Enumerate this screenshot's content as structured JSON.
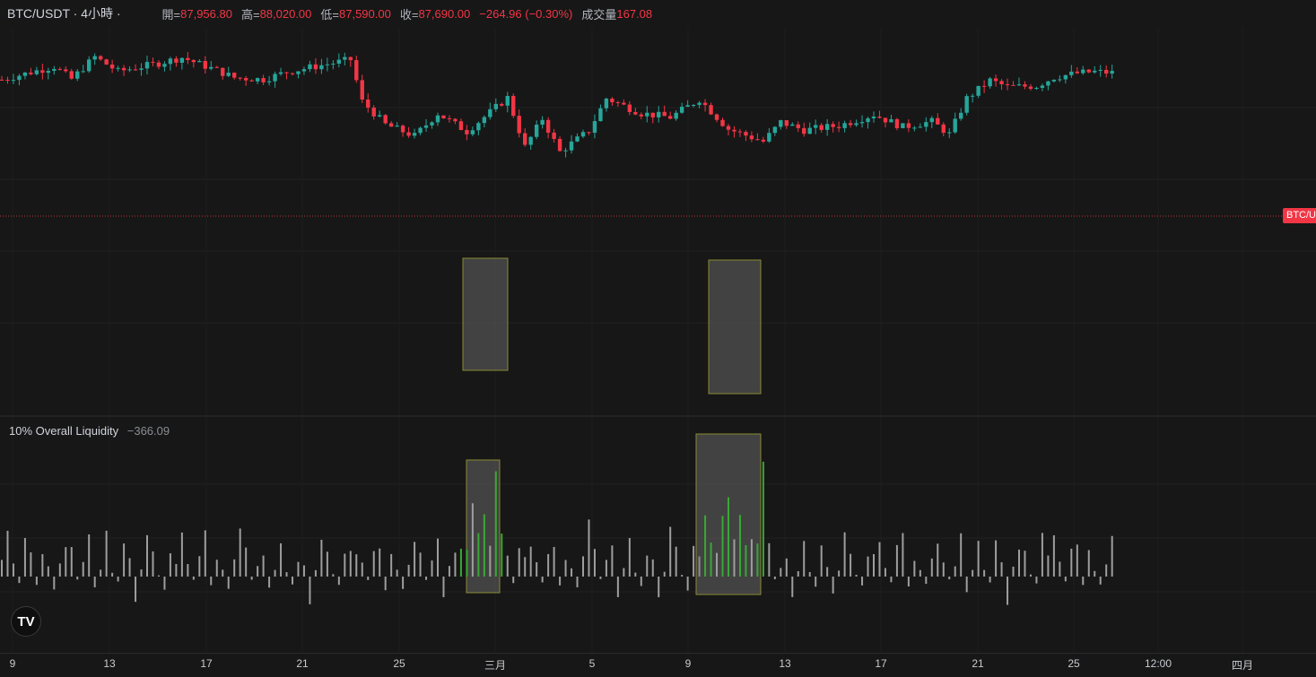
{
  "header": {
    "symbol": "BTC/USDT · 4小時 ·",
    "open_label": "開=",
    "open": "87,956.80",
    "high_label": "高=",
    "high": "88,020.00",
    "low_label": "低=",
    "low": "87,590.00",
    "close_label": "收=",
    "close": "87,690.00",
    "change": "−264.96 (−0.30%)",
    "volume_label": "成交量",
    "volume": "167.08"
  },
  "price_tag": "BTC/USDT",
  "indicator": {
    "name": "10% Overall Liquidity",
    "value": "−366.09"
  },
  "logo_text": "TV",
  "x_axis": {
    "ticks": [
      "9",
      "13",
      "17",
      "21",
      "25",
      "三月",
      "5",
      "9",
      "13",
      "17",
      "21",
      "25",
      "12:00",
      "四月"
    ]
  },
  "colors": {
    "up": "#26a69a",
    "down": "#f23645",
    "highlight_bar": "#3aa835",
    "liquidity_bar": "#9e9e9e"
  },
  "chart_data": {
    "type": "candlestick",
    "title": "BTC/USDT · 4小時",
    "close_path": [
      [
        0,
        88.6
      ],
      [
        6,
        91.2
      ],
      [
        9,
        92.4
      ],
      [
        12,
        88.8
      ],
      [
        16,
        95.2
      ],
      [
        20,
        91.0
      ],
      [
        27,
        93.4
      ],
      [
        31,
        95.0
      ],
      [
        37,
        91.3
      ],
      [
        40,
        89.2
      ],
      [
        45,
        88.7
      ],
      [
        49,
        90.8
      ],
      [
        55,
        92.8
      ],
      [
        60,
        94.4
      ],
      [
        62,
        82.3
      ],
      [
        66,
        75.6
      ],
      [
        71,
        72.3
      ],
      [
        75,
        78.8
      ],
      [
        80,
        73.6
      ],
      [
        87,
        83.4
      ],
      [
        90,
        69.1
      ],
      [
        93,
        77.3
      ],
      [
        96,
        67.7
      ],
      [
        101,
        73.8
      ],
      [
        104,
        83.2
      ],
      [
        110,
        78.9
      ],
      [
        115,
        77.7
      ],
      [
        120,
        82.9
      ],
      [
        125,
        74.3
      ],
      [
        131,
        70.7
      ],
      [
        134,
        76.3
      ],
      [
        138,
        74.0
      ],
      [
        144,
        75.3
      ],
      [
        150,
        78.5
      ],
      [
        155,
        74.9
      ],
      [
        160,
        76.5
      ],
      [
        163,
        72.8
      ],
      [
        166,
        83.2
      ],
      [
        170,
        88.4
      ],
      [
        173,
        86.5
      ],
      [
        178,
        86.8
      ],
      [
        181,
        89.3
      ],
      [
        185,
        90.5
      ],
      [
        188,
        90.9
      ],
      [
        191,
        90.6
      ]
    ],
    "liquidity_pattern": [
      20,
      38,
      12,
      -6,
      30,
      46,
      -14,
      22,
      8,
      -10,
      18,
      52,
      26,
      -4,
      14,
      34,
      -18,
      10,
      40,
      6,
      -8,
      28,
      16,
      -22,
      8,
      44,
      24,
      2,
      -12,
      36
    ],
    "liquidity_max": 160,
    "highlighted_boxes": [
      {
        "label": "box-1",
        "candles": [
          79,
          87
        ]
      },
      {
        "label": "box-2",
        "candles": [
          121,
          131
        ]
      }
    ]
  }
}
